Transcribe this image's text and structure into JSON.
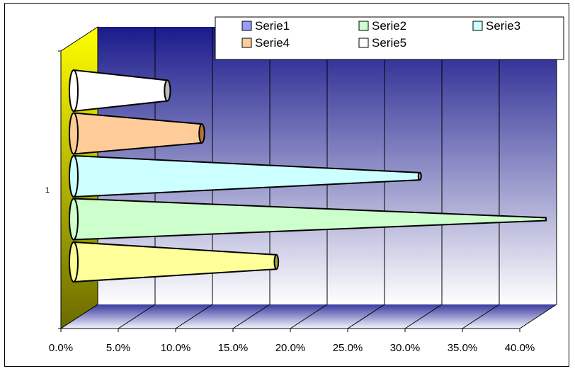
{
  "chart_data": {
    "type": "bar",
    "orientation": "horizontal",
    "style": "3d-cone",
    "categories": [
      "1"
    ],
    "series": [
      {
        "name": "Serie1",
        "values": [
          0.175
        ],
        "legend_color": "#9999ff",
        "bar_color": "#ffff99"
      },
      {
        "name": "Serie2",
        "values": [
          0.41
        ],
        "legend_color": "#ccffcc",
        "bar_color": "#ccffcc"
      },
      {
        "name": "Serie3",
        "values": [
          0.3
        ],
        "legend_color": "#ccffff",
        "bar_color": "#ccffff"
      },
      {
        "name": "Serie4",
        "values": [
          0.11
        ],
        "legend_color": "#ffcc99",
        "bar_color": "#ffcc99"
      },
      {
        "name": "Serie5",
        "values": [
          0.08
        ],
        "legend_color": "#ffffff",
        "bar_color": "#ffffff"
      }
    ],
    "x_ticks": [
      "0.0%",
      "5.0%",
      "10.0%",
      "15.0%",
      "20.0%",
      "25.0%",
      "30.0%",
      "35.0%",
      "40.0%"
    ],
    "xlim": [
      0,
      0.4
    ],
    "grid": true,
    "legend_position": "top-right",
    "wall_color_top": "#1a1a8c",
    "wall_color_bottom": "#ffffff",
    "side_wall_color": "#ffff00"
  }
}
